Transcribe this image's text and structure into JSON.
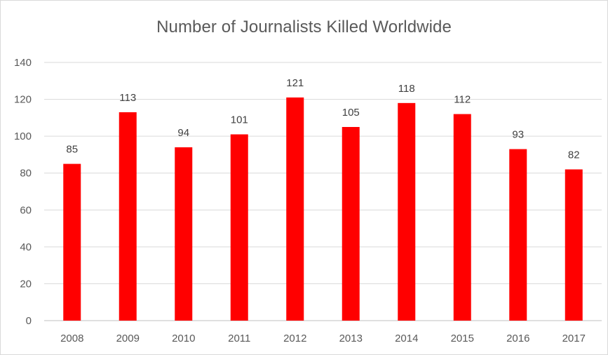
{
  "chart_data": {
    "type": "bar",
    "title": "Number of Journalists Killed Worldwide",
    "xlabel": "",
    "ylabel": "",
    "categories": [
      "2008",
      "2009",
      "2010",
      "2011",
      "2012",
      "2013",
      "2014",
      "2015",
      "2016",
      "2017"
    ],
    "values": [
      85,
      113,
      94,
      101,
      121,
      105,
      118,
      112,
      93,
      82
    ],
    "ylim": [
      0,
      140
    ],
    "yticks": [
      0,
      20,
      40,
      60,
      80,
      100,
      120,
      140
    ],
    "grid": true,
    "legend": "none",
    "data_labels": true,
    "colors": {
      "bar": "#ff0000",
      "grid": "#d9d9d9",
      "axis": "#bfbfbf",
      "text": "#595959"
    }
  }
}
